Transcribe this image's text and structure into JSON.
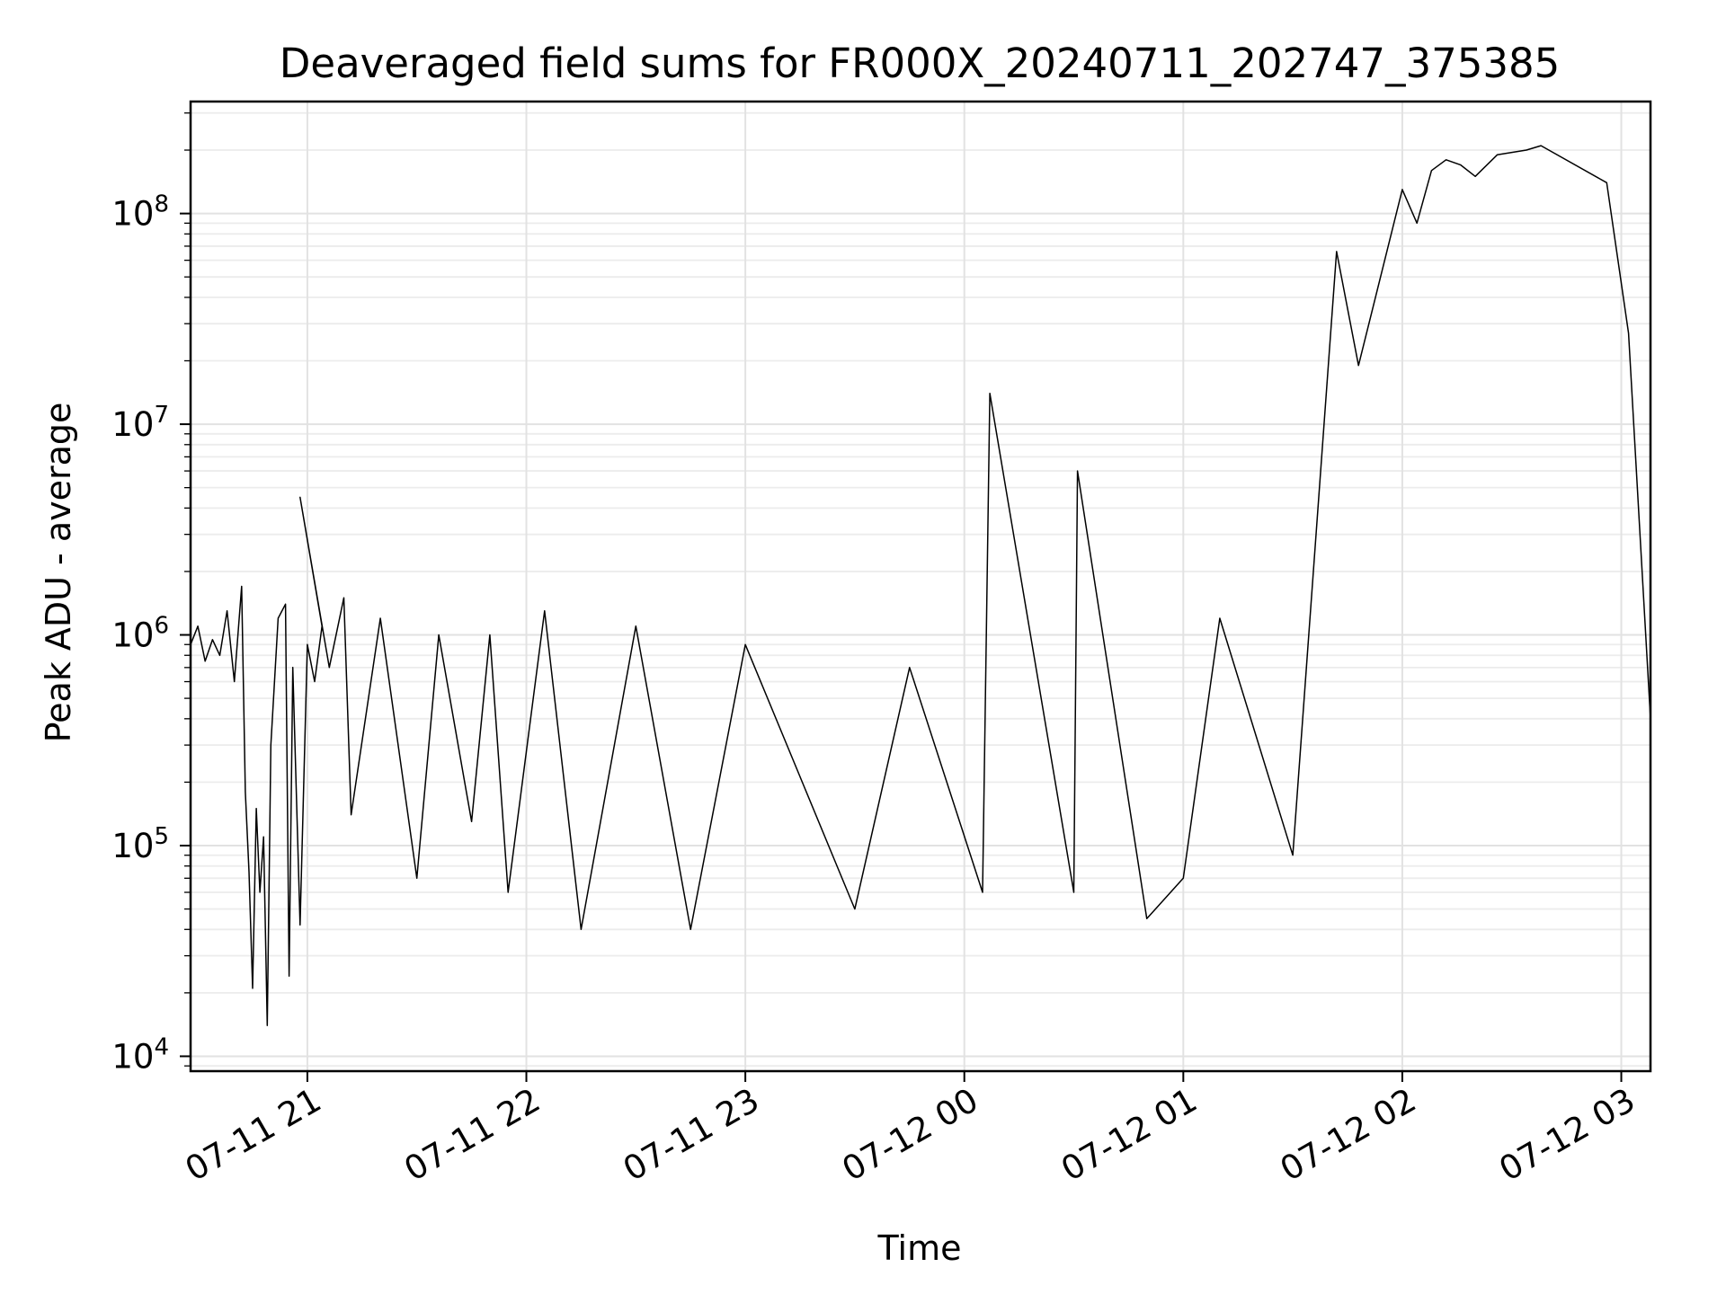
{
  "chart_data": {
    "type": "line",
    "title": "Deaveraged field sums for FR000X_20240711_202747_375385",
    "xlabel": "Time",
    "ylabel": "Peak ADU - average",
    "y_scale": "log",
    "ylim": [
      8500,
      340000000
    ],
    "xlim": [
      "2024-07-11 20:28",
      "2024-07-12 03:08"
    ],
    "grid": "on (major and minor)",
    "legend": "none",
    "x_ticks": [
      {
        "t": "2024-07-11 21:00",
        "label": "07-11 21"
      },
      {
        "t": "2024-07-11 22:00",
        "label": "07-11 22"
      },
      {
        "t": "2024-07-11 23:00",
        "label": "07-11 23"
      },
      {
        "t": "2024-07-12 00:00",
        "label": "07-12 00"
      },
      {
        "t": "2024-07-12 01:00",
        "label": "07-12 01"
      },
      {
        "t": "2024-07-12 02:00",
        "label": "07-12 02"
      },
      {
        "t": "2024-07-12 03:00",
        "label": "07-12 03"
      }
    ],
    "y_ticks": [
      {
        "value": 10000,
        "base": "10",
        "exp": "4"
      },
      {
        "value": 100000,
        "base": "10",
        "exp": "5"
      },
      {
        "value": 1000000,
        "base": "10",
        "exp": "6"
      },
      {
        "value": 10000000,
        "base": "10",
        "exp": "7"
      },
      {
        "value": 100000000,
        "base": "10",
        "exp": "8"
      }
    ],
    "series": [
      {
        "color": "#000000",
        "points": [
          [
            "2024-07-11 20:28",
            900000
          ],
          [
            "2024-07-11 20:30",
            1100000
          ],
          [
            "2024-07-11 20:32",
            750000
          ],
          [
            "2024-07-11 20:34",
            950000
          ],
          [
            "2024-07-11 20:36",
            800000
          ],
          [
            "2024-07-11 20:38",
            1300000
          ],
          [
            "2024-07-11 20:40",
            600000
          ],
          [
            "2024-07-11 20:42",
            1700000
          ],
          [
            "2024-07-11 20:43",
            180000
          ],
          [
            "2024-07-11 20:44",
            75000
          ],
          [
            "2024-07-11 20:45",
            21000
          ],
          [
            "2024-07-11 20:46",
            150000
          ],
          [
            "2024-07-11 20:47",
            60000
          ],
          [
            "2024-07-11 20:48",
            110000
          ],
          [
            "2024-07-11 20:49",
            14000
          ],
          [
            "2024-07-11 20:50",
            300000
          ],
          [
            "2024-07-11 20:52",
            1200000
          ],
          [
            "2024-07-11 20:54",
            1400000
          ],
          [
            "2024-07-11 20:55",
            24000
          ],
          [
            "2024-07-11 20:56",
            700000
          ],
          [
            "2024-07-11 20:58",
            42000
          ],
          [
            "2024-07-11 21:00",
            900000
          ],
          [
            "2024-07-11 21:02",
            600000
          ],
          [
            "2024-07-11 21:04",
            1100000
          ],
          [
            "2024-07-11 20:58",
            4500000
          ],
          [
            "2024-07-11 21:06",
            700000
          ],
          [
            "2024-07-11 21:10",
            1500000
          ],
          [
            "2024-07-11 21:12",
            140000
          ],
          [
            "2024-07-11 21:20",
            1200000
          ],
          [
            "2024-07-11 21:30",
            70000
          ],
          [
            "2024-07-11 21:36",
            1000000
          ],
          [
            "2024-07-11 21:45",
            130000
          ],
          [
            "2024-07-11 21:50",
            1000000
          ],
          [
            "2024-07-11 21:55",
            60000
          ],
          [
            "2024-07-11 22:05",
            1300000
          ],
          [
            "2024-07-11 22:15",
            40000
          ],
          [
            "2024-07-11 22:30",
            1100000
          ],
          [
            "2024-07-11 22:45",
            40000
          ],
          [
            "2024-07-11 23:00",
            900000
          ],
          [
            "2024-07-11 23:30",
            50000
          ],
          [
            "2024-07-11 23:45",
            700000
          ],
          [
            "2024-07-12 00:05",
            60000
          ],
          [
            "2024-07-12 00:07",
            14000000
          ],
          [
            "2024-07-12 00:30",
            60000
          ],
          [
            "2024-07-12 00:31",
            6000000
          ],
          [
            "2024-07-12 00:50",
            45000
          ],
          [
            "2024-07-12 01:00",
            70000
          ],
          [
            "2024-07-12 01:10",
            1200000
          ],
          [
            "2024-07-12 01:30",
            90000
          ],
          [
            "2024-07-12 01:42",
            66000000
          ],
          [
            "2024-07-12 01:48",
            19000000
          ],
          [
            "2024-07-12 02:00",
            130000000
          ],
          [
            "2024-07-12 02:04",
            90000000
          ],
          [
            "2024-07-12 02:08",
            160000000
          ],
          [
            "2024-07-12 02:12",
            180000000
          ],
          [
            "2024-07-12 02:16",
            170000000
          ],
          [
            "2024-07-12 02:20",
            150000000
          ],
          [
            "2024-07-12 02:26",
            190000000
          ],
          [
            "2024-07-12 02:34",
            200000000
          ],
          [
            "2024-07-12 02:38",
            210000000
          ],
          [
            "2024-07-12 02:56",
            140000000
          ],
          [
            "2024-07-12 03:02",
            27000000
          ],
          [
            "2024-07-12 03:08",
            400000
          ]
        ]
      }
    ]
  }
}
